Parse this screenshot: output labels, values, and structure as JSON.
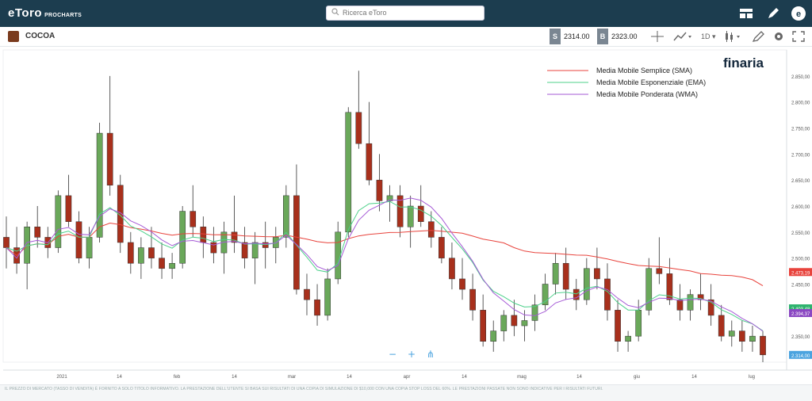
{
  "app": {
    "brand": "eToro",
    "brand_sub": "PROCHARTS"
  },
  "search": {
    "placeholder": "Ricerca eToro"
  },
  "topbar_icons": [
    "layout-icon",
    "pencil-icon",
    "etoro-profile-icon"
  ],
  "instrument": {
    "name": "COCOA"
  },
  "prices": {
    "sell_tag": "S",
    "sell": "2314.00",
    "buy_tag": "B",
    "buy": "2323.00"
  },
  "toolbar": {
    "interval": "1D",
    "crosshair": "crosshair-icon",
    "chart_type": "chart-type-icon",
    "candle": "candlestick-icon",
    "draw": "drawing-icon",
    "settings": "gear-icon",
    "fullscreen": "fullscreen-icon"
  },
  "watermark": "finaria",
  "disclaimer": "IL PREZZO DI MERCATO (TASSO DI VENDITA) È FORNITO A SOLO TITOLO INFORMATIVO. LA PRESTAZIONE DELL'UTENTE SI BASA SUI RISULTATI DI UNA COPIA DI SIMULAZIONE DI $10,000 CON UNA COPIA STOP LOSS DEL 60%. LE PRESTAZIONI PASSATE NON SONO INDICATIVE PER I RISULTATI FUTURI.",
  "chart_data": {
    "type": "candlestick",
    "x_tick_labels": [
      "2021",
      "14",
      "feb",
      "14",
      "mar",
      "14",
      "apr",
      "14",
      "mag",
      "14",
      "giu",
      "14",
      "lug"
    ],
    "y_tick_labels": [
      "2.850,00",
      "2.800,00",
      "2.750,00",
      "2.700,00",
      "2.650,00",
      "2.600,00",
      "2.550,00",
      "2.500,00",
      "2.450,00",
      "2.400,00",
      "2.350,00"
    ],
    "ylim": [
      2300,
      2900
    ],
    "legend": [
      {
        "name": "Media Mobile Semplice (SMA)",
        "color": "#e8433c"
      },
      {
        "name": "Media Mobile Esponenziale (EMA)",
        "color": "#4cd08a"
      },
      {
        "name": "Media Mobile Ponderata (WMA)",
        "color": "#a65bd6"
      }
    ],
    "price_labels": [
      {
        "text": "2.473,19",
        "value": 2473.19,
        "color": "#e8433c"
      },
      {
        "text": "2.403,48",
        "value": 2403.48,
        "color": "#2fb36e"
      },
      {
        "text": "2.394,37",
        "value": 2394.37,
        "color": "#8a47c2"
      },
      {
        "text": "2.314,00",
        "value": 2314.0,
        "color": "#4aa3df"
      }
    ],
    "up_color": "#6aa85a",
    "down_color": "#a8301c",
    "candles_ohlc": [
      [
        2540,
        2580,
        2480,
        2520
      ],
      [
        2520,
        2560,
        2470,
        2490
      ],
      [
        2490,
        2570,
        2440,
        2560
      ],
      [
        2560,
        2600,
        2520,
        2540
      ],
      [
        2540,
        2560,
        2500,
        2520
      ],
      [
        2520,
        2630,
        2510,
        2620
      ],
      [
        2620,
        2660,
        2560,
        2570
      ],
      [
        2570,
        2590,
        2490,
        2500
      ],
      [
        2500,
        2560,
        2480,
        2540
      ],
      [
        2540,
        2760,
        2530,
        2740
      ],
      [
        2740,
        2850,
        2620,
        2640
      ],
      [
        2640,
        2660,
        2510,
        2530
      ],
      [
        2530,
        2550,
        2470,
        2490
      ],
      [
        2490,
        2540,
        2460,
        2520
      ],
      [
        2520,
        2560,
        2480,
        2500
      ],
      [
        2500,
        2530,
        2460,
        2480
      ],
      [
        2480,
        2510,
        2460,
        2490
      ],
      [
        2490,
        2600,
        2480,
        2590
      ],
      [
        2590,
        2640,
        2540,
        2560
      ],
      [
        2560,
        2580,
        2500,
        2530
      ],
      [
        2530,
        2560,
        2490,
        2510
      ],
      [
        2510,
        2570,
        2470,
        2550
      ],
      [
        2550,
        2620,
        2510,
        2530
      ],
      [
        2530,
        2560,
        2480,
        2500
      ],
      [
        2500,
        2550,
        2450,
        2530
      ],
      [
        2530,
        2570,
        2480,
        2520
      ],
      [
        2520,
        2560,
        2490,
        2540
      ],
      [
        2540,
        2640,
        2520,
        2620
      ],
      [
        2620,
        2680,
        2430,
        2440
      ],
      [
        2440,
        2470,
        2390,
        2420
      ],
      [
        2420,
        2450,
        2370,
        2390
      ],
      [
        2390,
        2480,
        2380,
        2460
      ],
      [
        2460,
        2570,
        2450,
        2550
      ],
      [
        2550,
        2790,
        2540,
        2780
      ],
      [
        2780,
        2860,
        2710,
        2720
      ],
      [
        2720,
        2800,
        2640,
        2650
      ],
      [
        2650,
        2700,
        2590,
        2610
      ],
      [
        2610,
        2640,
        2570,
        2620
      ],
      [
        2620,
        2640,
        2540,
        2560
      ],
      [
        2560,
        2620,
        2520,
        2600
      ],
      [
        2600,
        2640,
        2560,
        2570
      ],
      [
        2570,
        2590,
        2520,
        2540
      ],
      [
        2540,
        2560,
        2490,
        2500
      ],
      [
        2500,
        2530,
        2440,
        2460
      ],
      [
        2460,
        2500,
        2420,
        2440
      ],
      [
        2440,
        2470,
        2380,
        2400
      ],
      [
        2400,
        2430,
        2330,
        2340
      ],
      [
        2340,
        2380,
        2320,
        2360
      ],
      [
        2360,
        2400,
        2340,
        2390
      ],
      [
        2390,
        2420,
        2350,
        2370
      ],
      [
        2370,
        2400,
        2340,
        2380
      ],
      [
        2380,
        2430,
        2360,
        2410
      ],
      [
        2410,
        2470,
        2400,
        2450
      ],
      [
        2450,
        2510,
        2430,
        2490
      ],
      [
        2490,
        2520,
        2420,
        2440
      ],
      [
        2440,
        2460,
        2400,
        2420
      ],
      [
        2420,
        2500,
        2410,
        2480
      ],
      [
        2480,
        2520,
        2440,
        2460
      ],
      [
        2460,
        2490,
        2380,
        2400
      ],
      [
        2400,
        2420,
        2320,
        2340
      ],
      [
        2340,
        2360,
        2320,
        2350
      ],
      [
        2350,
        2420,
        2340,
        2400
      ],
      [
        2400,
        2500,
        2390,
        2480
      ],
      [
        2480,
        2540,
        2450,
        2470
      ],
      [
        2470,
        2500,
        2410,
        2420
      ],
      [
        2420,
        2450,
        2380,
        2400
      ],
      [
        2400,
        2440,
        2380,
        2430
      ],
      [
        2430,
        2470,
        2400,
        2420
      ],
      [
        2420,
        2450,
        2370,
        2390
      ],
      [
        2390,
        2410,
        2340,
        2350
      ],
      [
        2350,
        2380,
        2330,
        2360
      ],
      [
        2360,
        2380,
        2320,
        2340
      ],
      [
        2340,
        2370,
        2320,
        2350
      ],
      [
        2350,
        2360,
        2300,
        2314
      ]
    ]
  }
}
